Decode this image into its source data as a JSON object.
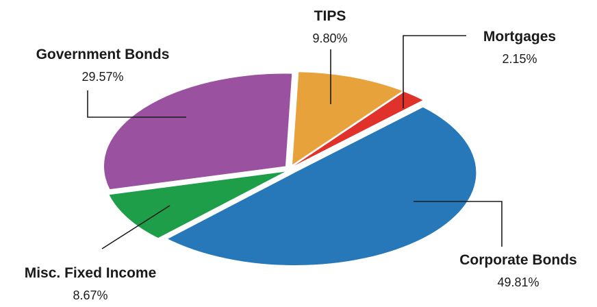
{
  "chart_data": {
    "type": "pie",
    "series": [
      {
        "name": "TIPS",
        "value": 9.8,
        "label": "9.80%",
        "color": "#E8A23C"
      },
      {
        "name": "Mortgages",
        "value": 2.15,
        "label": "2.15%",
        "color": "#E0312B"
      },
      {
        "name": "Corporate Bonds",
        "value": 49.81,
        "label": "49.81%",
        "color": "#2778B8"
      },
      {
        "name": "Misc. Fixed Income",
        "value": 8.67,
        "label": "8.67%",
        "color": "#1E9E48"
      },
      {
        "name": "Government Bonds",
        "value": 29.57,
        "label": "29.57%",
        "color": "#9A52A0"
      }
    ],
    "style": "exploded 3d-tilted pie, labels with leader lines"
  }
}
